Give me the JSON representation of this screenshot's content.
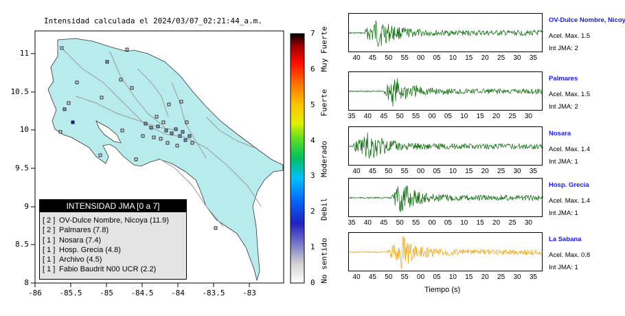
{
  "map": {
    "title": "Intensidad calculada el 2024/03/07_02:21:44_a.m.",
    "lon_ticks": [
      "-86",
      "-85.5",
      "-85",
      "-84.5",
      "-84",
      "-83.5",
      "-83"
    ],
    "lat_ticks": [
      "8",
      "8.5",
      "9",
      "9.5",
      "10",
      "10.5",
      "11"
    ],
    "land_color": "#b8ecec",
    "sea_color": "#ffffff",
    "legend": {
      "header": "INTENSIDAD JMA [0 a 7]",
      "rows": [
        {
          "level": "[ 2 ]",
          "text": "OV-Dulce Nombre, Nicoya (11.9)"
        },
        {
          "level": "[ 2 ]",
          "text": "Palmares (7.8)"
        },
        {
          "level": "[ 1 ]",
          "text": "Nosara (7.4)"
        },
        {
          "level": "[ 1 ]",
          "text": "Hosp. Grecia (4.8)"
        },
        {
          "level": "[ 1 ]",
          "text": "Archivo (4.5)"
        },
        {
          "level": "[ 1 ]",
          "text": "Fabio Baudrit N00 UCR (2.2)"
        }
      ]
    }
  },
  "colorbar": {
    "ticks": [
      "0",
      "1",
      "2",
      "3",
      "4",
      "5",
      "6",
      "7"
    ],
    "words": [
      "No sentido",
      "Debil",
      "Moderado",
      "Fuerte",
      "Muy Fuerte"
    ]
  },
  "waveforms": {
    "x_axis_label": "Tiempo (s)",
    "panels": [
      {
        "name": "OV-Dulce Nombre, Nicoya",
        "accel": "Acel. Max. 1.5",
        "int": "Int JMA: 2",
        "color": "#006400",
        "ticks": [
          "40",
          "45",
          "50",
          "55",
          "00",
          "05",
          "10",
          "15",
          "20",
          "25",
          "30",
          "35"
        ]
      },
      {
        "name": "Palmares",
        "accel": "Acel. Max. 1.5",
        "int": "Int JMA: 2",
        "color": "#006400",
        "ticks": [
          "35",
          "40",
          "45",
          "50",
          "55",
          "00",
          "05",
          "10",
          "15",
          "20",
          "25",
          "30"
        ]
      },
      {
        "name": "Nosara",
        "accel": "Acel. Max. 1.4",
        "int": "Int JMA: 1",
        "color": "#006400",
        "ticks": [
          "40",
          "45",
          "50",
          "55",
          "00",
          "05",
          "10",
          "15",
          "20",
          "25",
          "30",
          "35"
        ]
      },
      {
        "name": "Hosp. Grecia",
        "accel": "Acel. Max. 1.4",
        "int": "Int JMA: 1",
        "color": "#006400",
        "ticks": [
          "35",
          "40",
          "45",
          "50",
          "55",
          "00",
          "05",
          "10",
          "15",
          "20",
          "25",
          "30"
        ]
      },
      {
        "name": "La Sabana",
        "accel": "Acel. Max. 0.8",
        "int": "Int JMA: 1",
        "color": "#f0a000",
        "ticks": [
          "40",
          "45",
          "50",
          "55",
          "00",
          "05",
          "10",
          "15",
          "20",
          "25",
          "30",
          "35"
        ]
      }
    ]
  }
}
